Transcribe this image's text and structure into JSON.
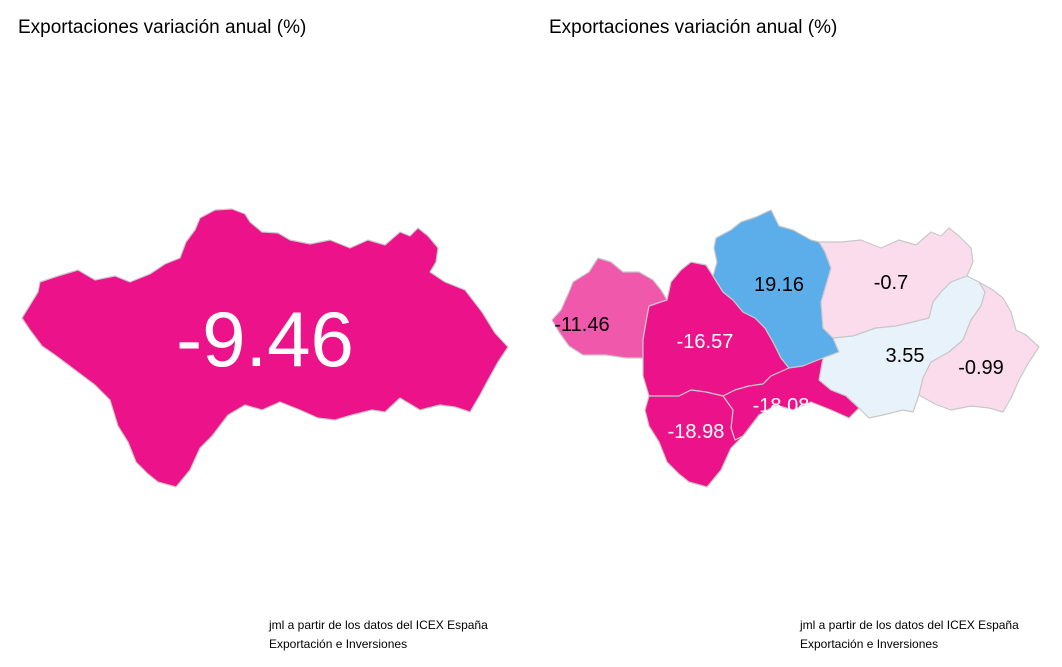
{
  "left_panel": {
    "title": "Exportaciones variación anual (%)",
    "region": {
      "name": "Andalucía",
      "value": "-9.46",
      "fill": "#ec1289",
      "label_color": "#ffffff"
    },
    "caption_line1": "jml a partir de los datos del ICEX España",
    "caption_line2": "Exportación e Inversiones"
  },
  "right_panel": {
    "title": "Exportaciones variación anual (%)",
    "provinces": [
      {
        "name": "Huelva",
        "value": "-11.46",
        "fill": "#f058ac",
        "label_color": "#000000"
      },
      {
        "name": "Sevilla",
        "value": "-16.57",
        "fill": "#ec1289",
        "label_color": "#ffffff"
      },
      {
        "name": "Córdoba",
        "value": "19.16",
        "fill": "#5caeea",
        "label_color": "#000000"
      },
      {
        "name": "Jaén",
        "value": "-0.7",
        "fill": "#fbdced",
        "label_color": "#000000"
      },
      {
        "name": "Granada",
        "value": "3.55",
        "fill": "#e8f2fa",
        "label_color": "#000000"
      },
      {
        "name": "Almería",
        "value": "-0.99",
        "fill": "#fbdced",
        "label_color": "#000000"
      },
      {
        "name": "Málaga",
        "value": "-18.08",
        "fill": "#ec1289",
        "label_color": "#ffffff"
      },
      {
        "name": "Cádiz",
        "value": "-18.98",
        "fill": "#ec1289",
        "label_color": "#ffffff"
      }
    ],
    "caption_line1": "jml a partir de los datos del ICEX España",
    "caption_line2": "Exportación e Inversiones"
  },
  "colors": {
    "border": "#c8c8c8",
    "background": "#ffffff"
  }
}
